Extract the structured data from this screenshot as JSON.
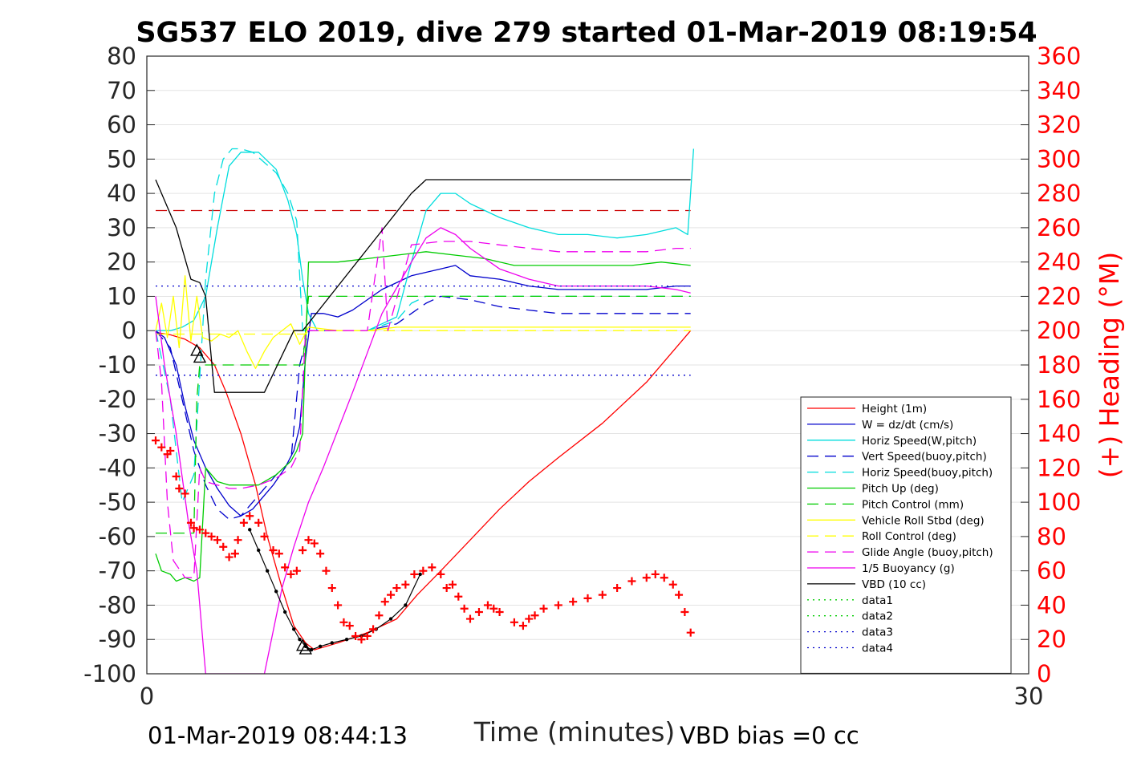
{
  "chart_data": {
    "type": "line",
    "title": "SG537 ELO 2019, dive 279 started 01-Mar-2019 08:19:54",
    "xlabel": "Time (minutes)",
    "ylabel": "",
    "y2label": "(+) Heading (°M)",
    "xlim": [
      0,
      30
    ],
    "ylim": [
      -100,
      80
    ],
    "y2lim": [
      0,
      360
    ],
    "x_ticks": [
      "0",
      "30"
    ],
    "y_ticks": [
      "80",
      "70",
      "60",
      "50",
      "40",
      "30",
      "20",
      "10",
      "0",
      "-10",
      "-20",
      "-30",
      "-40",
      "-50",
      "-60",
      "-70",
      "-80",
      "-90",
      "-100"
    ],
    "y2_ticks": [
      "360",
      "340",
      "320",
      "300",
      "280",
      "260",
      "240",
      "220",
      "200",
      "180",
      "160",
      "140",
      "120",
      "100",
      "80",
      "60",
      "40",
      "20",
      "0"
    ],
    "footer_left": "01-Mar-2019 08:44:13",
    "footer_right": "VBD bias =0 cc",
    "grid": "horizontal",
    "legend_position": "lower-right",
    "series": [
      {
        "name": "Height (1m)",
        "color": "#ff0000",
        "style": "solid",
        "x": [
          0.3,
          0.8,
          1.3,
          1.8,
          2.3,
          2.7,
          3.2,
          3.7,
          4.1,
          4.6,
          5.0,
          5.4,
          5.7,
          6.5,
          7.5,
          8.5,
          9.2,
          10.0,
          11.0,
          12.0,
          13.0,
          14.0,
          15.5,
          17.0,
          18.5
        ],
        "y": [
          -0.5,
          -1.2,
          -2.5,
          -5,
          -10,
          -18,
          -30,
          -45,
          -60,
          -75,
          -86,
          -91,
          -93,
          -91,
          -88,
          -84,
          -77,
          -70,
          -61,
          -52,
          -44,
          -37,
          -27,
          -15,
          0
        ]
      },
      {
        "name": "W = dz/dt (cm/s)",
        "color": "#0000cc",
        "style": "solid",
        "x": [
          0.3,
          0.6,
          1.0,
          1.3,
          1.6,
          2.0,
          2.4,
          2.8,
          3.2,
          3.6,
          4.0,
          4.3,
          4.7,
          5.0,
          5.2,
          5.4,
          5.6,
          6.0,
          6.5,
          7.0,
          8.0,
          9.0,
          10.0,
          10.5,
          11.0,
          12.0,
          13.0,
          14.0,
          15.0,
          16.0,
          17.0,
          18.0,
          18.5
        ],
        "y": [
          0,
          -2,
          -10,
          -22,
          -32,
          -40,
          -46,
          -51,
          -54,
          -52,
          -48,
          -45,
          -40,
          -35,
          -28,
          -8,
          5,
          5,
          4,
          6,
          12,
          16,
          18,
          19,
          16,
          15,
          13,
          12,
          12,
          12,
          12,
          13,
          13
        ]
      },
      {
        "name": "Horiz Speed(W,pitch)",
        "color": "#00dddd",
        "style": "solid",
        "x": [
          0.3,
          0.8,
          1.2,
          1.6,
          2.0,
          2.4,
          2.8,
          3.2,
          3.8,
          4.4,
          4.8,
          5.1,
          5.3,
          5.5,
          5.8,
          6.5,
          7.5,
          8.5,
          9.0,
          9.5,
          10.0,
          10.5,
          11.0,
          12.0,
          13.0,
          14.0,
          15.0,
          16.0,
          17.0,
          18.0,
          18.4,
          18.6
        ],
        "y": [
          0,
          0,
          1,
          3,
          10,
          30,
          48,
          52,
          52,
          47,
          38,
          28,
          15,
          5,
          0,
          0,
          0,
          4,
          20,
          35,
          40,
          40,
          37,
          33,
          30,
          28,
          28,
          27,
          28,
          30,
          28,
          53
        ]
      },
      {
        "name": "Vert Speed(buoy,pitch)",
        "color": "#0000cc",
        "style": "dashed",
        "x": [
          0.3,
          0.8,
          1.2,
          1.6,
          2.0,
          2.4,
          2.8,
          3.2,
          3.8,
          4.4,
          4.9,
          5.2,
          5.5,
          6.5,
          7.5,
          8.5,
          9.0,
          9.5,
          10.0,
          11.0,
          12.0,
          13.0,
          14.0,
          15.0,
          16.0,
          17.0,
          18.0,
          18.5
        ],
        "y": [
          0,
          -5,
          -20,
          -35,
          -45,
          -52,
          -55,
          -54,
          -48,
          -42,
          -38,
          -10,
          0,
          0,
          0,
          2,
          5,
          8,
          10,
          9,
          7,
          6,
          5,
          5,
          5,
          5,
          5,
          5
        ]
      },
      {
        "name": "Horiz Speed(buoy,pitch)",
        "color": "#00dddd",
        "style": "dashed",
        "x": [
          0.3,
          0.8,
          1.2,
          1.6,
          2.0,
          2.3,
          2.6,
          2.9,
          3.2,
          3.6,
          4.0,
          4.4,
          4.8,
          5.1,
          5.3,
          5.5,
          6.5,
          7.5,
          8.5,
          9.0,
          9.5,
          10.0,
          11.0,
          12.0,
          13.0,
          14.0,
          15.0,
          16.0,
          17.0,
          18.0,
          18.5
        ],
        "y": [
          0,
          -20,
          -50,
          -42,
          15,
          40,
          50,
          53,
          53,
          52,
          49,
          46,
          40,
          32,
          0,
          0,
          0,
          0,
          3,
          8,
          10,
          10,
          10,
          10,
          10,
          10,
          10,
          10,
          10,
          10,
          10
        ]
      },
      {
        "name": "Pitch Up (deg)",
        "color": "#00cc00",
        "style": "solid",
        "x": [
          0.3,
          0.5,
          0.8,
          1.0,
          1.3,
          1.6,
          1.8,
          2.0,
          2.4,
          2.8,
          3.2,
          3.8,
          4.4,
          4.9,
          5.1,
          5.3,
          5.5,
          6.5,
          7.5,
          8.5,
          9.5,
          10.5,
          11.5,
          12.5,
          13.5,
          14.5,
          15.5,
          16.5,
          17.5,
          18.5
        ],
        "y": [
          -65,
          -70,
          -71,
          -73,
          -72,
          -73,
          -72,
          -40,
          -44,
          -45,
          -45,
          -45,
          -42,
          -38,
          -35,
          -30,
          20,
          20,
          21,
          22,
          23,
          22,
          21,
          19,
          19,
          19,
          19,
          19,
          20,
          19
        ]
      },
      {
        "name": "Pitch Control (mm)",
        "color": "#00cc00",
        "style": "dashed",
        "x": [
          0.3,
          1.6,
          1.7,
          1.8,
          5.3,
          5.4,
          5.5,
          18.5
        ],
        "y": [
          -59,
          -59,
          -20,
          -10,
          -10,
          0,
          10,
          10
        ]
      },
      {
        "name": "Vehicle Roll Stbd (deg)",
        "color": "#ffff00",
        "style": "solid",
        "x": [
          0.3,
          0.5,
          0.7,
          0.9,
          1.1,
          1.3,
          1.5,
          1.7,
          1.9,
          2.2,
          2.5,
          2.8,
          3.1,
          3.4,
          3.7,
          4.0,
          4.3,
          4.6,
          4.9,
          5.2,
          5.5,
          6.5,
          7.5,
          8.5,
          9.5,
          10.5,
          12.0,
          14.0,
          16.0,
          18.5
        ],
        "y": [
          0,
          8,
          -2,
          10,
          -5,
          16,
          -3,
          10,
          -2,
          -3,
          -1,
          -2,
          0,
          -6,
          -11,
          -6,
          -2,
          0,
          2,
          -4,
          1,
          0,
          0,
          1,
          1,
          1,
          1,
          1,
          1,
          1
        ]
      },
      {
        "name": "Roll Control (deg)",
        "color": "#ffff00",
        "style": "dashed",
        "x": [
          0.3,
          5.4,
          5.5,
          18.5
        ],
        "y": [
          -1,
          -1,
          0,
          0
        ]
      },
      {
        "name": "Glide Angle (buoy,pitch)",
        "color": "#ee00ee",
        "style": "dashed",
        "x": [
          0.3,
          0.5,
          0.7,
          0.9,
          1.3,
          1.6,
          1.8,
          2.0,
          2.4,
          2.8,
          3.2,
          3.8,
          4.4,
          4.9,
          5.2,
          5.4,
          6.5,
          7.5,
          8.0,
          8.2,
          9.0,
          10.0,
          11.0,
          12.0,
          13.0,
          14.0,
          15.0,
          16.0,
          17.0,
          18.0,
          18.5
        ],
        "y": [
          0,
          -15,
          -50,
          -67,
          -72,
          -72,
          -40,
          -44,
          -45,
          -46,
          -46,
          -45,
          -43,
          -40,
          -35,
          0,
          0,
          0,
          30,
          0,
          25,
          26,
          26,
          25,
          24,
          23,
          23,
          23,
          23,
          24,
          24
        ]
      },
      {
        "name": "1/5 Buoyancy (g)",
        "color": "#ee00ee",
        "style": "solid",
        "x": [
          0.3,
          0.6,
          1.0,
          1.4,
          1.7,
          2.0,
          2.3,
          3.6,
          4.0,
          4.6,
          5.0,
          5.5,
          6.0,
          7.0,
          8.0,
          9.0,
          9.5,
          10.0,
          10.5,
          11.0,
          12.0,
          13.0,
          14.0,
          15.0,
          16.0,
          17.0,
          18.0,
          18.5
        ],
        "y": [
          10,
          -10,
          -30,
          -55,
          -70,
          -100,
          -100,
          -100,
          -100,
          -75,
          -63,
          -50,
          -40,
          -18,
          5,
          20,
          27,
          30,
          28,
          24,
          18,
          15,
          13,
          13,
          13,
          13,
          12,
          11
        ]
      },
      {
        "name": "VBD (10 cc)",
        "color": "#000000",
        "style": "solid",
        "x": [
          0.3,
          1.0,
          1.5,
          1.8,
          2.0,
          2.3,
          3.6,
          4.0,
          5.0,
          5.3,
          9.0,
          9.5,
          18.5
        ],
        "y": [
          44,
          30,
          15,
          14,
          10,
          -18,
          -18,
          -18,
          0,
          0,
          40,
          44,
          44
        ]
      },
      {
        "name": "data1",
        "color": "#00cc00",
        "style": "dotted",
        "x": [],
        "y": []
      },
      {
        "name": "data2",
        "color": "#00cc00",
        "style": "dotted",
        "x": [],
        "y": []
      },
      {
        "name": "data3",
        "color": "#0000cc",
        "style": "dotted",
        "x": [
          0.3,
          18.5
        ],
        "y": [
          13,
          13
        ]
      },
      {
        "name": "data4",
        "color": "#0000cc",
        "style": "dotted",
        "x": [
          0.3,
          18.5
        ],
        "y": [
          -13,
          -13
        ]
      }
    ],
    "unlisted_series": [
      {
        "role": "reference",
        "color": "#cc0000",
        "style": "dashed",
        "x": [
          0.3,
          18.5
        ],
        "y": [
          35,
          35
        ]
      },
      {
        "role": "dive-markers",
        "color": "#000000",
        "style": "dots",
        "x": [
          3.5,
          3.8,
          4.1,
          4.4,
          4.7,
          5.0,
          5.2,
          5.4,
          5.6,
          5.9,
          6.3,
          6.8,
          7.3,
          7.8,
          8.3,
          8.8,
          9.3
        ],
        "y": [
          -58,
          -64,
          -70,
          -76,
          -82,
          -87,
          -90,
          -92,
          -93,
          -92,
          -91,
          -90,
          -89,
          -87,
          -84,
          -80,
          -71
        ]
      },
      {
        "role": "triangles",
        "color": "#000000",
        "style": "triangle",
        "x": [
          1.7,
          1.8,
          5.3,
          5.4
        ],
        "y": [
          -6,
          -8,
          -92,
          -93
        ]
      }
    ],
    "heading_series": {
      "name": "Heading",
      "axis": "right",
      "color": "#ff0000",
      "marker": "+",
      "x": [
        0.3,
        0.5,
        0.7,
        0.8,
        1.0,
        1.1,
        1.3,
        1.5,
        1.6,
        1.8,
        2.0,
        2.2,
        2.4,
        2.6,
        2.8,
        3.0,
        3.1,
        3.3,
        3.5,
        3.8,
        4.0,
        4.3,
        4.5,
        4.7,
        4.9,
        5.1,
        5.3,
        5.5,
        5.7,
        5.9,
        6.1,
        6.3,
        6.5,
        6.7,
        6.9,
        7.1,
        7.3,
        7.5,
        7.7,
        7.9,
        8.1,
        8.3,
        8.5,
        8.8,
        9.1,
        9.4,
        9.7,
        10.0,
        10.2,
        10.4,
        10.6,
        10.8,
        11.0,
        11.3,
        11.6,
        11.8,
        12.0,
        12.5,
        12.8,
        13.0,
        13.2,
        13.5,
        14.0,
        14.5,
        15.0,
        15.5,
        16.0,
        16.5,
        17.0,
        17.3,
        17.6,
        17.9,
        18.1,
        18.3,
        18.5
      ],
      "y": [
        136,
        132,
        128,
        130,
        115,
        108,
        105,
        88,
        85,
        84,
        82,
        80,
        78,
        74,
        68,
        70,
        78,
        88,
        92,
        88,
        80,
        72,
        70,
        62,
        58,
        60,
        72,
        78,
        76,
        70,
        60,
        50,
        40,
        30,
        28,
        22,
        20,
        22,
        26,
        34,
        42,
        46,
        50,
        52,
        58,
        60,
        62,
        58,
        50,
        52,
        45,
        38,
        32,
        36,
        40,
        38,
        36,
        30,
        28,
        32,
        34,
        38,
        40,
        42,
        44,
        46,
        50,
        54,
        56,
        58,
        56,
        52,
        46,
        36,
        24
      ]
    }
  }
}
